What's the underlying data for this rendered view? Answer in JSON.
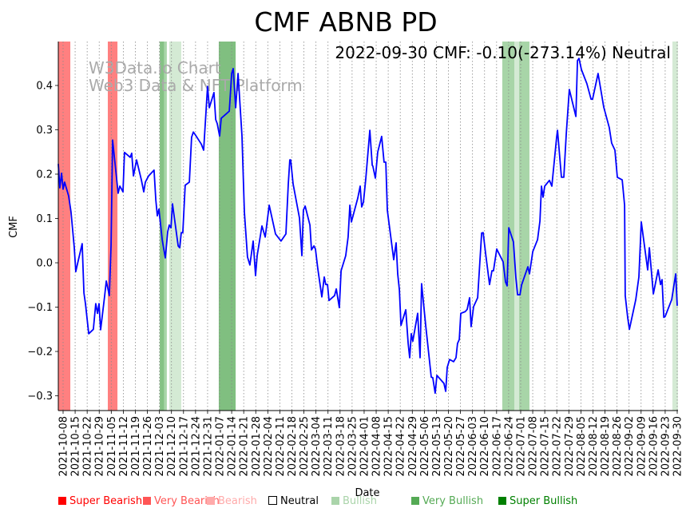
{
  "chart_data": {
    "type": "line",
    "title": "CMF ABNB PD",
    "xlabel": "Date",
    "ylabel": "CMF",
    "annotation": "2022-09-30 CMF: -0.10(-273.14%) Neutral",
    "watermark": [
      "W3Data.io Chart",
      "Web3 Data & NFT Platform"
    ],
    "x_unit": "days since 2021-10-08",
    "xlim": [
      -2.8,
      357.4
    ],
    "ylim": [
      -0.33,
      0.5
    ],
    "yticks": [
      -0.3,
      -0.2,
      -0.1,
      0.0,
      0.1,
      0.2,
      0.3,
      0.4
    ],
    "ytick_labels": [
      "−0.3",
      "−0.2",
      "−0.1",
      "0.0",
      "0.1",
      "0.2",
      "0.3",
      "0.4"
    ],
    "xtick_labels": [
      "2021-10-08",
      "2021-10-15",
      "2021-10-22",
      "2021-10-29",
      "2021-11-05",
      "2021-11-12",
      "2021-11-19",
      "2021-11-26",
      "2021-12-03",
      "2021-12-10",
      "2021-12-17",
      "2021-12-24",
      "2021-12-31",
      "2022-01-07",
      "2022-01-14",
      "2022-01-21",
      "2022-01-28",
      "2022-02-04",
      "2022-02-11",
      "2022-02-18",
      "2022-02-25",
      "2022-03-04",
      "2022-03-11",
      "2022-03-18",
      "2022-03-25",
      "2022-04-01",
      "2022-04-08",
      "2022-04-15",
      "2022-04-22",
      "2022-04-29",
      "2022-05-06",
      "2022-05-13",
      "2022-05-20",
      "2022-05-27",
      "2022-06-03",
      "2022-06-10",
      "2022-06-17",
      "2022-06-24",
      "2022-07-01",
      "2022-07-08",
      "2022-07-15",
      "2022-07-22",
      "2022-07-29",
      "2022-08-05",
      "2022-08-12",
      "2022-08-19",
      "2022-08-26",
      "2022-09-02",
      "2022-09-09",
      "2022-09-16",
      "2022-09-23",
      "2022-09-30"
    ],
    "grid": "x-dotted",
    "series": [
      {
        "name": "CMF",
        "color": "#0000ff",
        "points": [
          [
            -2.8,
            0.223
          ],
          [
            -1.9,
            0.169
          ],
          [
            -0.9,
            0.202
          ],
          [
            0,
            0.166
          ],
          [
            0.9,
            0.182
          ],
          [
            3.2,
            0.151
          ],
          [
            4.6,
            0.115
          ],
          [
            6.5,
            0.034
          ],
          [
            7.4,
            -0.02
          ],
          [
            8.4,
            -0.002
          ],
          [
            11.1,
            0.043
          ],
          [
            12.1,
            -0.068
          ],
          [
            13.0,
            -0.092
          ],
          [
            14.9,
            -0.16
          ],
          [
            17.6,
            -0.15
          ],
          [
            19.0,
            -0.092
          ],
          [
            20.0,
            -0.114
          ],
          [
            20.9,
            -0.092
          ],
          [
            21.8,
            -0.151
          ],
          [
            24.1,
            -0.077
          ],
          [
            25.1,
            -0.041
          ],
          [
            26.9,
            -0.074
          ],
          [
            27.9,
            0.041
          ],
          [
            28.8,
            0.277
          ],
          [
            30.2,
            0.223
          ],
          [
            32.0,
            0.157
          ],
          [
            33.0,
            0.173
          ],
          [
            34.8,
            0.16
          ],
          [
            35.7,
            0.249
          ],
          [
            39.0,
            0.238
          ],
          [
            39.9,
            0.247
          ],
          [
            40.9,
            0.196
          ],
          [
            42.7,
            0.232
          ],
          [
            45.5,
            0.187
          ],
          [
            46.9,
            0.16
          ],
          [
            47.8,
            0.182
          ],
          [
            49.7,
            0.196
          ],
          [
            52.9,
            0.209
          ],
          [
            53.9,
            0.142
          ],
          [
            54.8,
            0.106
          ],
          [
            55.7,
            0.121
          ],
          [
            57.6,
            0.052
          ],
          [
            59.4,
            0.011
          ],
          [
            60.8,
            0.07
          ],
          [
            61.7,
            0.085
          ],
          [
            62.7,
            0.079
          ],
          [
            63.6,
            0.133
          ],
          [
            66.9,
            0.038
          ],
          [
            67.8,
            0.034
          ],
          [
            68.7,
            0.068
          ],
          [
            69.6,
            0.068
          ],
          [
            71.0,
            0.175
          ],
          [
            73.4,
            0.182
          ],
          [
            74.7,
            0.283
          ],
          [
            75.7,
            0.295
          ],
          [
            77.5,
            0.285
          ],
          [
            80.3,
            0.268
          ],
          [
            81.7,
            0.254
          ],
          [
            84.0,
            0.398
          ],
          [
            85.0,
            0.35
          ],
          [
            87.7,
            0.384
          ],
          [
            88.7,
            0.323
          ],
          [
            89.6,
            0.314
          ],
          [
            91.0,
            0.286
          ],
          [
            91.9,
            0.326
          ],
          [
            96.6,
            0.342
          ],
          [
            98.0,
            0.427
          ],
          [
            98.9,
            0.438
          ],
          [
            100.3,
            0.35
          ],
          [
            101.7,
            0.427
          ],
          [
            104.0,
            0.286
          ],
          [
            105.4,
            0.115
          ],
          [
            107.2,
            0.013
          ],
          [
            108.6,
            -0.005
          ],
          [
            110.5,
            0.049
          ],
          [
            111.9,
            -0.029
          ],
          [
            112.8,
            0.016
          ],
          [
            115.6,
            0.083
          ],
          [
            117.5,
            0.058
          ],
          [
            119.8,
            0.13
          ],
          [
            123.5,
            0.065
          ],
          [
            126.7,
            0.049
          ],
          [
            129.5,
            0.065
          ],
          [
            130.9,
            0.178
          ],
          [
            131.8,
            0.232
          ],
          [
            132.3,
            0.232
          ],
          [
            133.7,
            0.178
          ],
          [
            137.4,
            0.101
          ],
          [
            138.8,
            0.016
          ],
          [
            139.7,
            0.119
          ],
          [
            140.7,
            0.128
          ],
          [
            143.5,
            0.085
          ],
          [
            144.4,
            0.029
          ],
          [
            145.8,
            0.038
          ],
          [
            146.7,
            0.031
          ],
          [
            148.1,
            -0.014
          ],
          [
            150.4,
            -0.077
          ],
          [
            151.8,
            -0.032
          ],
          [
            152.7,
            -0.049
          ],
          [
            153.7,
            -0.049
          ],
          [
            154.6,
            -0.085
          ],
          [
            157.8,
            -0.074
          ],
          [
            158.8,
            -0.059
          ],
          [
            160.6,
            -0.101
          ],
          [
            161.6,
            -0.018
          ],
          [
            164.3,
            0.016
          ],
          [
            165.7,
            0.058
          ],
          [
            166.7,
            0.13
          ],
          [
            167.6,
            0.092
          ],
          [
            171.3,
            0.146
          ],
          [
            172.7,
            0.173
          ],
          [
            173.6,
            0.126
          ],
          [
            174.6,
            0.137
          ],
          [
            176.0,
            0.191
          ],
          [
            178.3,
            0.299
          ],
          [
            179.7,
            0.22
          ],
          [
            180.1,
            0.218
          ],
          [
            181.5,
            0.191
          ],
          [
            182.9,
            0.25
          ],
          [
            185.2,
            0.285
          ],
          [
            186.6,
            0.227
          ],
          [
            187.6,
            0.227
          ],
          [
            188.5,
            0.119
          ],
          [
            192.2,
            0.007
          ],
          [
            193.6,
            0.045
          ],
          [
            194.5,
            -0.025
          ],
          [
            195.5,
            -0.061
          ],
          [
            196.4,
            -0.141
          ],
          [
            199.2,
            -0.106
          ],
          [
            200.6,
            -0.182
          ],
          [
            201.5,
            -0.214
          ],
          [
            202.4,
            -0.16
          ],
          [
            203.3,
            -0.177
          ],
          [
            206.1,
            -0.114
          ],
          [
            207.5,
            -0.214
          ],
          [
            208.4,
            -0.047
          ],
          [
            210.8,
            -0.142
          ],
          [
            214.0,
            -0.258
          ],
          [
            214.9,
            -0.259
          ],
          [
            216.3,
            -0.294
          ],
          [
            217.3,
            -0.254
          ],
          [
            221.4,
            -0.272
          ],
          [
            222.4,
            -0.29
          ],
          [
            223.3,
            -0.236
          ],
          [
            224.7,
            -0.218
          ],
          [
            227.0,
            -0.223
          ],
          [
            228.4,
            -0.214
          ],
          [
            229.3,
            -0.182
          ],
          [
            230.3,
            -0.173
          ],
          [
            231.2,
            -0.114
          ],
          [
            233.8,
            -0.11
          ],
          [
            234.9,
            -0.105
          ],
          [
            236.3,
            -0.079
          ],
          [
            237.2,
            -0.144
          ],
          [
            238.6,
            -0.099
          ],
          [
            241.0,
            -0.079
          ],
          [
            243.3,
            0.067
          ],
          [
            244.2,
            0.068
          ],
          [
            245.6,
            0.022
          ],
          [
            247.9,
            -0.049
          ],
          [
            249.3,
            -0.018
          ],
          [
            250.2,
            -0.018
          ],
          [
            252.1,
            0.031
          ],
          [
            255.8,
            0.002
          ],
          [
            257.2,
            -0.043
          ],
          [
            258.1,
            -0.052
          ],
          [
            259.1,
            0.079
          ],
          [
            261.8,
            0.047
          ],
          [
            263.2,
            -0.032
          ],
          [
            264.2,
            -0.072
          ],
          [
            265.6,
            -0.072
          ],
          [
            266.5,
            -0.05
          ],
          [
            270.2,
            -0.009
          ],
          [
            271.1,
            -0.025
          ],
          [
            273.0,
            0.025
          ],
          [
            275.8,
            0.052
          ],
          [
            277.2,
            0.094
          ],
          [
            278.1,
            0.173
          ],
          [
            279.0,
            0.148
          ],
          [
            280.0,
            0.173
          ],
          [
            282.7,
            0.186
          ],
          [
            284.1,
            0.173
          ],
          [
            286.9,
            0.283
          ],
          [
            287.4,
            0.299
          ],
          [
            289.7,
            0.193
          ],
          [
            291.1,
            0.193
          ],
          [
            292.5,
            0.292
          ],
          [
            294.3,
            0.391
          ],
          [
            298.1,
            0.33
          ],
          [
            299.0,
            0.456
          ],
          [
            299.9,
            0.461
          ],
          [
            301.3,
            0.436
          ],
          [
            304.5,
            0.404
          ],
          [
            306.9,
            0.369
          ],
          [
            307.8,
            0.369
          ],
          [
            311.0,
            0.427
          ],
          [
            314.3,
            0.351
          ],
          [
            317.5,
            0.305
          ],
          [
            318.9,
            0.27
          ],
          [
            320.8,
            0.254
          ],
          [
            322.2,
            0.193
          ],
          [
            325.0,
            0.187
          ],
          [
            326.4,
            0.13
          ],
          [
            326.8,
            -0.074
          ],
          [
            328.2,
            -0.124
          ],
          [
            329.2,
            -0.15
          ],
          [
            332.9,
            -0.083
          ],
          [
            334.7,
            -0.032
          ],
          [
            336.1,
            0.092
          ],
          [
            339.8,
            -0.016
          ],
          [
            340.8,
            0.034
          ],
          [
            343.1,
            -0.07
          ],
          [
            345.9,
            -0.016
          ],
          [
            347.3,
            -0.049
          ],
          [
            348.2,
            -0.038
          ],
          [
            349.2,
            -0.123
          ],
          [
            350.0,
            -0.121
          ],
          [
            353.8,
            -0.083
          ],
          [
            356.1,
            -0.025
          ],
          [
            357.0,
            -0.097
          ]
        ]
      }
    ],
    "signal_bands": [
      {
        "signal": "Super Bearish",
        "start": -2.8,
        "end": 4.2,
        "color": "#ff8080"
      },
      {
        "signal": "Super Bearish",
        "start": 26.0,
        "end": 31.6,
        "color": "#ff8080"
      },
      {
        "signal": "Very Bullish",
        "start": 56.2,
        "end": 58.8,
        "color": "#85c285"
      },
      {
        "signal": "Bullish",
        "start": 58.8,
        "end": 60.3,
        "color": "#a8d5a8"
      },
      {
        "signal": "Bullish",
        "start": 61.7,
        "end": 68.7,
        "color": "#d4ead4"
      },
      {
        "signal": "Super Bullish",
        "start": 90.5,
        "end": 100.3,
        "color": "#80bf80"
      },
      {
        "signal": "Very Bullish",
        "start": 255.3,
        "end": 262.3,
        "color": "#a8d5a8"
      },
      {
        "signal": "Bullish",
        "start": 262.3,
        "end": 265.1,
        "color": "#d4ead4"
      },
      {
        "signal": "Very Bullish",
        "start": 265.1,
        "end": 271.1,
        "color": "#a8d5a8"
      },
      {
        "signal": "Bullish",
        "start": 354.2,
        "end": 357.4,
        "color": "#d4ead4"
      }
    ],
    "legend": [
      {
        "label": "Super Bearish",
        "color": "#ff0000",
        "filled": true
      },
      {
        "label": "Very Bearish",
        "color": "#ff5555",
        "filled": true
      },
      {
        "label": "Bearish",
        "color": "#ffaaaa",
        "filled": true
      },
      {
        "label": "Neutral",
        "color": "#000000",
        "filled": false
      },
      {
        "label": "Bullish",
        "color": "#aad4aa",
        "filled": true
      },
      {
        "label": "Very Bullish",
        "color": "#55aa55",
        "filled": true
      },
      {
        "label": "Super Bullish",
        "color": "#008000",
        "filled": true
      }
    ],
    "legend_placement": "bottom"
  }
}
